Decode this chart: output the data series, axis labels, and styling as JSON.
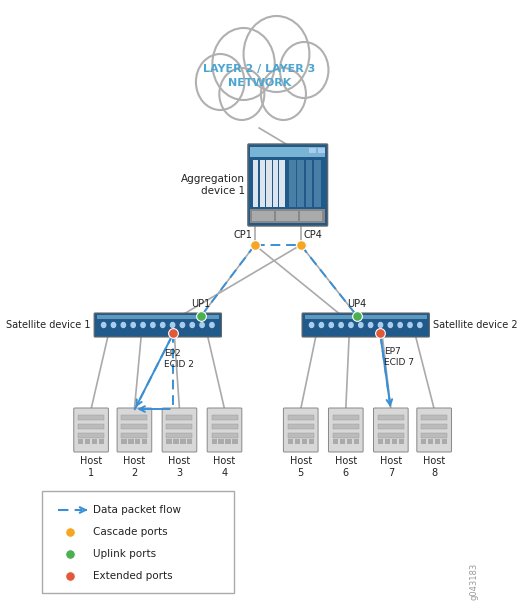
{
  "bg_color": "#ffffff",
  "cloud_color": "#b0b0b0",
  "cloud_text": "LAYER 2 / LAYER 3\nNETWORK",
  "cloud_text_color": "#4da6d0",
  "agg_label": "Aggregation\ndevice 1",
  "agg_color": "#1f5a8a",
  "agg_accent": "#7ab4d4",
  "sat_color": "#1f5a8a",
  "sat_accent": "#7ab4d4",
  "cp1_label": "CP1",
  "cp4_label": "CP4",
  "up1_label": "UP1",
  "up4_label": "UP4",
  "ep2_label": "EP2\nECID 2",
  "ep7_label": "EP7\nECID 7",
  "sat1_label": "Satellite device 1",
  "sat2_label": "Satellite device 2",
  "cascade_color": "#f5a623",
  "uplink_color": "#4caf50",
  "extended_color": "#e05a3a",
  "flow_color": "#3a8fd4",
  "line_color": "#aaaaaa",
  "hosts_left_labels": [
    "Host\n1",
    "Host\n2",
    "Host\n3",
    "Host\n4"
  ],
  "hosts_right_labels": [
    "Host\n5",
    "Host\n6",
    "Host\n7",
    "Host\n8"
  ],
  "watermark": "g043183",
  "legend_items": [
    {
      "type": "line",
      "label": "Data packet flow"
    },
    {
      "type": "dot",
      "color": "#f5a623",
      "label": "Cascade ports"
    },
    {
      "type": "dot",
      "color": "#4caf50",
      "label": "Uplink ports"
    },
    {
      "type": "dot",
      "color": "#e05a3a",
      "label": "Extended ports"
    }
  ]
}
